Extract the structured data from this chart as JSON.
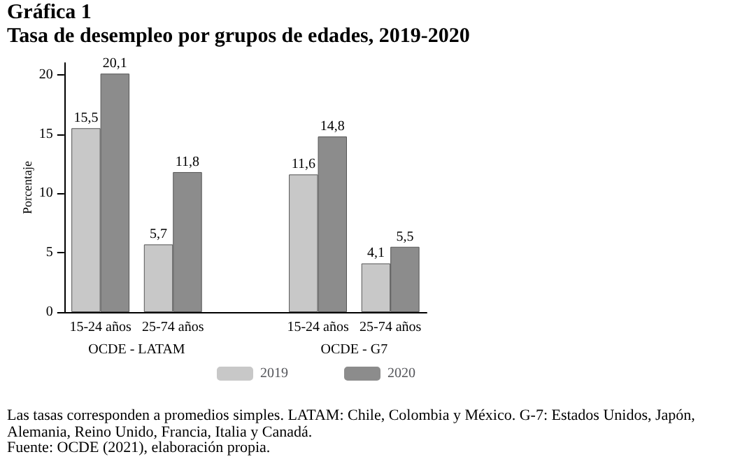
{
  "chart_data": {
    "type": "bar",
    "title": "Gráfica 1",
    "subtitle": "Tasa de desempleo por grupos de edades, 2019-2020",
    "ylabel": "Porcentaje",
    "categories": [
      "15-24 años",
      "25-74 años",
      null,
      "15-24 años",
      "25-74 años"
    ],
    "series": [
      {
        "name": "2019",
        "color": "#c8c8c8",
        "values": [
          15.5,
          5.7,
          null,
          11.6,
          4.1
        ],
        "value_labels": [
          "15,5",
          "5,7",
          null,
          "11,6",
          "4,1"
        ]
      },
      {
        "name": "2020",
        "color": "#8c8c8c",
        "values": [
          20.1,
          11.8,
          null,
          14.8,
          5.5
        ],
        "value_labels": [
          "20,1",
          "11,8",
          null,
          "14,8",
          "5,5"
        ]
      }
    ],
    "ylim": [
      0,
      21
    ],
    "yticks": [
      0,
      5,
      10,
      15,
      20
    ],
    "grid": false,
    "legend": "bottom",
    "annotations": [
      "OCDE - LATAM",
      "OCDE - G7",
      "Las tasas corresponden a promedios simples. LATAM: Chile, Colombia y México. G-7: Estados Unidos, Japón, Alemania, Reino Unido, Francia, Italia y Canadá.",
      "Fuente: OCDE (2021), elaboración propia."
    ]
  }
}
